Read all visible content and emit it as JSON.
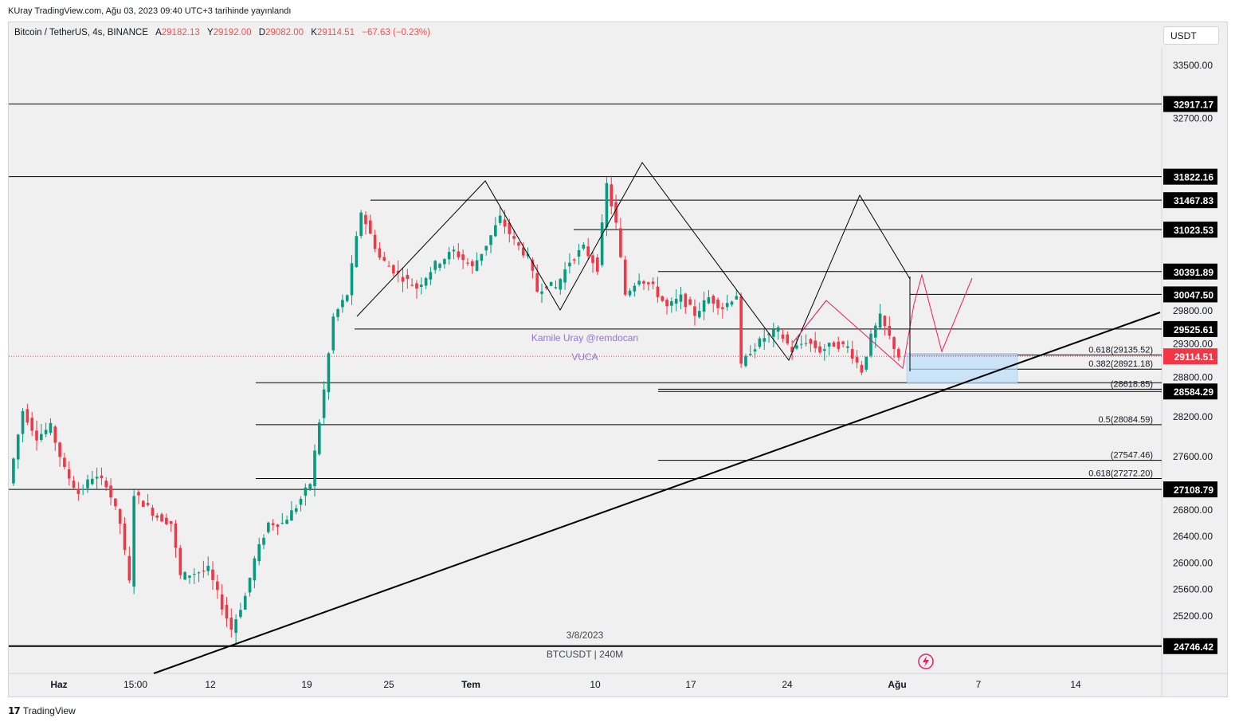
{
  "header": {
    "publisher": "KUray TradingView.com, Ağu 03, 2023 09:40 UTC+3 tarihinde yayınlandı"
  },
  "legend": {
    "symbol": "Bitcoin / TetherUS, 4s, BINANCE",
    "open_label": "A",
    "open": "29182.13",
    "high_label": "Y",
    "high": "29192.00",
    "low_label": "D",
    "low": "29082.00",
    "close_label": "K",
    "close": "29114.51",
    "change": "−67.63 (−0.23%)"
  },
  "currency": "USDT",
  "footer": {
    "brand": "TradingView",
    "brand_icon": "tradingview-logo-icon"
  },
  "colors": {
    "up": "#089981",
    "down": "#f23645",
    "price_tag": "#f23645",
    "level_tag": "#000000",
    "pattern_pink": "#e91e63",
    "watermark": "#9575cd",
    "fib_box": "#bbdefb"
  },
  "chart_data": {
    "type": "candlestick",
    "y_axis_ticks": [
      "33500.00",
      "32700.00",
      "29800.00",
      "29300.00",
      "28800.00",
      "28200.00",
      "27600.00",
      "26800.00",
      "26400.00",
      "26000.00",
      "25600.00",
      "25200.00"
    ],
    "x_axis_ticks": [
      "Haz",
      "15:00",
      "12",
      "19",
      "25",
      "Tem",
      "10",
      "17",
      "24",
      "Ağu",
      "7",
      "14"
    ],
    "ylim": [
      24300,
      34000
    ],
    "price_levels": [
      {
        "value": 32917.17,
        "label": "32917.17"
      },
      {
        "value": 31822.16,
        "label": "31822.16"
      },
      {
        "value": 31467.83,
        "label": "31467.83"
      },
      {
        "value": 31023.53,
        "label": "31023.53"
      },
      {
        "value": 30391.89,
        "label": "30391.89"
      },
      {
        "value": 30047.5,
        "label": "30047.50"
      },
      {
        "value": 29525.61,
        "label": "29525.61"
      },
      {
        "value": 28584.29,
        "label": "28584.29"
      },
      {
        "value": 27108.79,
        "label": "27108.79"
      },
      {
        "value": 24746.42,
        "label": "24746.42"
      }
    ],
    "current_price": {
      "value": 29114.51,
      "label": "29114.51"
    },
    "fib_labels": [
      {
        "text": "0.618(29135.52)",
        "value": 29135.52
      },
      {
        "text": "0.382(28921.18)",
        "value": 28921.18
      },
      {
        "text": "(28618.85)",
        "value": 28618.85
      },
      {
        "text": "0.5(28084.59)",
        "value": 28084.59
      },
      {
        "text": "(27547.46)",
        "value": 27547.46
      },
      {
        "text": "0.618(27272.20)",
        "value": 27272.2
      }
    ],
    "annotations": {
      "author": "Kamile Uray @remdocan",
      "tag": "VUCA",
      "date": "3/8/2023",
      "symbol_info": "BTCUSDT | 240M"
    },
    "price_path": [
      [
        0,
        27200
      ],
      [
        3,
        28300
      ],
      [
        6,
        27900
      ],
      [
        9,
        28050
      ],
      [
        12,
        27400
      ],
      [
        15,
        27050
      ],
      [
        18,
        27300
      ],
      [
        21,
        27200
      ],
      [
        24,
        26600
      ],
      [
        26,
        25700
      ],
      [
        27,
        27050
      ],
      [
        29,
        26900
      ],
      [
        32,
        26700
      ],
      [
        35,
        26600
      ],
      [
        37,
        25800
      ],
      [
        40,
        25850
      ],
      [
        43,
        25900
      ],
      [
        46,
        25350
      ],
      [
        48,
        25000
      ],
      [
        51,
        25500
      ],
      [
        53,
        26050
      ],
      [
        56,
        26600
      ],
      [
        59,
        26600
      ],
      [
        62,
        26850
      ],
      [
        65,
        27200
      ],
      [
        68,
        28600
      ],
      [
        70,
        29700
      ],
      [
        73,
        30050
      ],
      [
        76,
        31300
      ],
      [
        80,
        30600
      ],
      [
        84,
        30350
      ],
      [
        88,
        30150
      ],
      [
        92,
        30500
      ],
      [
        96,
        30700
      ],
      [
        100,
        30450
      ],
      [
        103,
        30800
      ],
      [
        106,
        31200
      ],
      [
        109,
        30850
      ],
      [
        112,
        30600
      ],
      [
        114,
        30100
      ],
      [
        116,
        30200
      ],
      [
        118,
        30150
      ],
      [
        121,
        30550
      ],
      [
        124,
        30750
      ],
      [
        127,
        30450
      ],
      [
        129,
        31700
      ],
      [
        131,
        31100
      ],
      [
        133,
        30050
      ],
      [
        136,
        30300
      ],
      [
        139,
        30150
      ],
      [
        142,
        29850
      ],
      [
        145,
        30000
      ],
      [
        148,
        29750
      ],
      [
        151,
        30000
      ],
      [
        154,
        29850
      ],
      [
        157,
        30050
      ],
      [
        158,
        28950
      ],
      [
        160,
        29200
      ],
      [
        163,
        29400
      ],
      [
        166,
        29500
      ],
      [
        169,
        29200
      ],
      [
        172,
        29350
      ],
      [
        175,
        29200
      ],
      [
        178,
        29300
      ],
      [
        181,
        29250
      ],
      [
        184,
        28900
      ],
      [
        186,
        29400
      ],
      [
        188,
        29700
      ],
      [
        190,
        29400
      ],
      [
        192,
        29114.51
      ]
    ],
    "x_range": [
      0,
      240
    ]
  }
}
